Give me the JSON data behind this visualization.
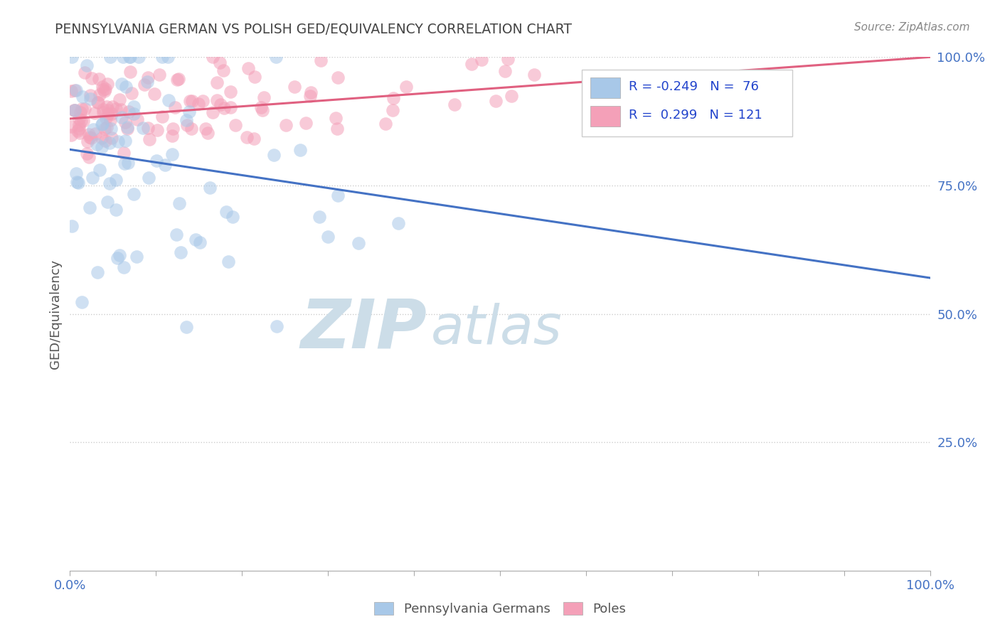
{
  "title": "PENNSYLVANIA GERMAN VS POLISH GED/EQUIVALENCY CORRELATION CHART",
  "source": "Source: ZipAtlas.com",
  "ylabel": "GED/Equivalency",
  "legend_series": [
    {
      "label": "Pennsylvania Germans",
      "color": "#a8c8e8",
      "R": -0.249,
      "N": 76
    },
    {
      "label": "Poles",
      "color": "#f4a0b8",
      "R": 0.299,
      "N": 121
    }
  ],
  "blue_line_y_start": 82.0,
  "blue_line_y_end": 57.0,
  "pink_line_y_start": 88.0,
  "pink_line_y_end": 100.0,
  "xlim": [
    0,
    100
  ],
  "ylim": [
    0,
    100
  ],
  "yticks": [
    25,
    50,
    75,
    100
  ],
  "ytick_labels": [
    "25.0%",
    "50.0%",
    "75.0%",
    "100.0%"
  ],
  "background_color": "#ffffff",
  "grid_color": "#cccccc",
  "blue_color": "#a8c8e8",
  "pink_color": "#f4a0b8",
  "blue_line_color": "#4472c4",
  "pink_line_color": "#e06080",
  "title_color": "#444444",
  "source_color": "#888888",
  "legend_r_color": "#2244cc",
  "watermark_zip_color": "#ccdde8",
  "watermark_atlas_color": "#ccdde8"
}
